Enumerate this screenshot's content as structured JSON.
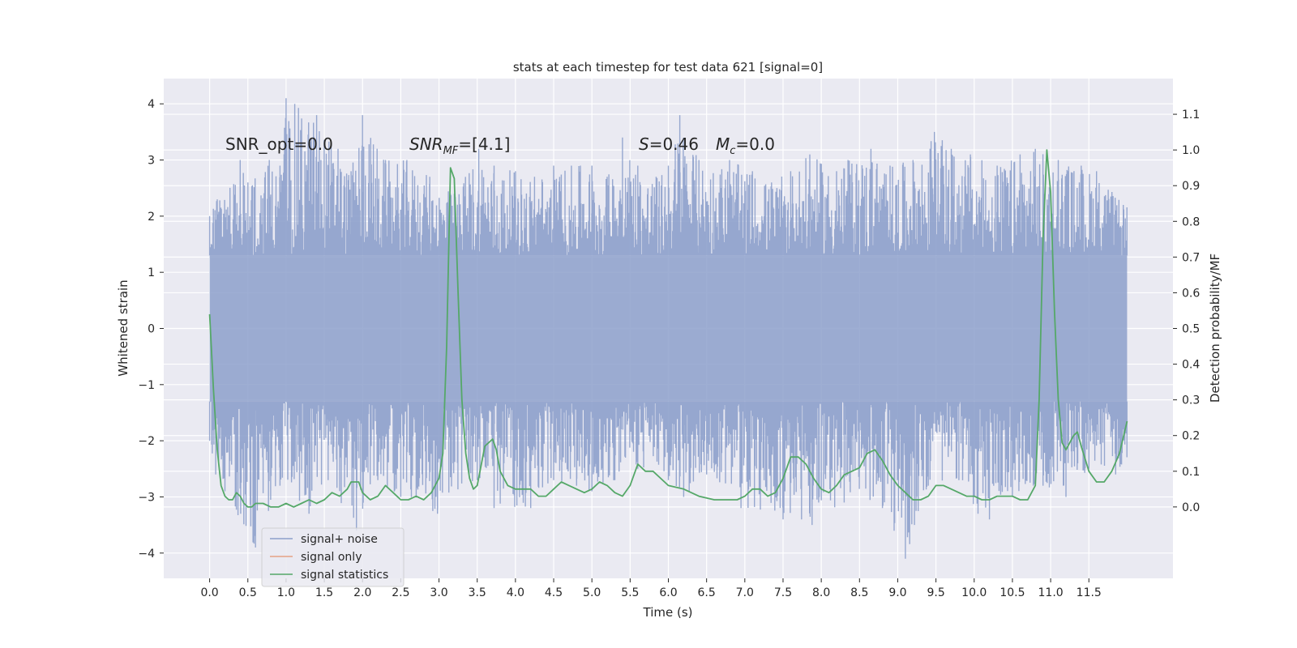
{
  "chart_data": {
    "type": "line",
    "title": "stats at each timestep for test data 621 [signal=0]",
    "xlabel": "Time (s)",
    "ylabel": "Whitened strain",
    "ylabel_right": "Detection probability/MF",
    "xlim": [
      -0.6,
      12.6
    ],
    "ylim": [
      -4.45,
      4.45
    ],
    "ylim_right": [
      -0.2,
      1.2
    ],
    "x_ticks": [
      "0.0",
      "0.5",
      "1.0",
      "1.5",
      "2.0",
      "2.5",
      "3.0",
      "3.5",
      "4.0",
      "4.5",
      "5.0",
      "5.5",
      "6.0",
      "6.5",
      "7.0",
      "7.5",
      "8.0",
      "8.5",
      "9.0",
      "9.5",
      "10.0",
      "10.5",
      "11.0",
      "11.5"
    ],
    "y_ticks": [
      "4",
      "3",
      "2",
      "1",
      "0",
      "−1",
      "−2",
      "−3",
      "−4"
    ],
    "y_ticks_right": [
      "1.1",
      "1.0",
      "0.9",
      "0.8",
      "0.7",
      "0.6",
      "0.5",
      "0.4",
      "0.3",
      "0.2",
      "0.1",
      "0.0"
    ],
    "grid": true,
    "legend_position": "lower-left",
    "annotations": {
      "snr_opt": "SNR_opt=0.0",
      "snr_mf_main": "SNR",
      "snr_mf_sub": "MF",
      "snr_mf_value": "=[4.1]",
      "s_symbol": "S",
      "s_value": "=0.46",
      "mc_symbol": "M",
      "mc_sub": "c",
      "mc_value": "=0.0"
    },
    "series": [
      {
        "name": "signal+ noise",
        "color": "#8da0cb",
        "kind": "noise-band",
        "x_range": [
          0.0,
          12.0
        ],
        "band": [
          -1.3,
          1.3
        ],
        "spike_peaks_upper": [
          [
            0.0,
            2.0
          ],
          [
            0.1,
            2.3
          ],
          [
            0.4,
            3.0
          ],
          [
            0.5,
            2.6
          ],
          [
            0.78,
            3.0
          ],
          [
            0.92,
            2.9
          ],
          [
            1.0,
            4.1
          ],
          [
            1.4,
            3.8
          ],
          [
            1.68,
            3.2
          ],
          [
            1.85,
            2.8
          ],
          [
            2.0,
            3.8
          ],
          [
            2.3,
            3.0
          ],
          [
            2.58,
            3.0
          ],
          [
            2.88,
            2.7
          ],
          [
            3.2,
            2.4
          ],
          [
            3.52,
            3.2
          ],
          [
            3.72,
            2.9
          ],
          [
            4.0,
            2.8
          ],
          [
            4.25,
            2.7
          ],
          [
            4.5,
            2.9
          ],
          [
            4.85,
            2.9
          ],
          [
            5.0,
            2.9
          ],
          [
            5.2,
            2.7
          ],
          [
            5.4,
            3.4
          ],
          [
            5.6,
            2.9
          ],
          [
            5.84,
            2.7
          ],
          [
            6.0,
            2.9
          ],
          [
            6.15,
            3.8
          ],
          [
            6.4,
            3.0
          ],
          [
            6.8,
            3.0
          ],
          [
            7.1,
            2.8
          ],
          [
            7.35,
            2.6
          ],
          [
            7.6,
            2.8
          ],
          [
            7.85,
            3.1
          ],
          [
            8.2,
            2.8
          ],
          [
            8.35,
            3.0
          ],
          [
            8.65,
            3.2
          ],
          [
            8.9,
            2.9
          ],
          [
            9.2,
            3.0
          ],
          [
            9.48,
            3.5
          ],
          [
            9.7,
            3.2
          ],
          [
            9.95,
            3.1
          ],
          [
            10.3,
            2.9
          ],
          [
            10.6,
            3.1
          ],
          [
            10.8,
            3.2
          ],
          [
            11.1,
            3.0
          ],
          [
            11.4,
            2.9
          ],
          [
            11.6,
            2.8
          ],
          [
            11.95,
            2.2
          ]
        ],
        "spike_peaks_lower": [
          [
            0.0,
            -2.0
          ],
          [
            0.08,
            -2.6
          ],
          [
            0.2,
            -2.9
          ],
          [
            0.6,
            -3.9
          ],
          [
            0.92,
            -2.8
          ],
          [
            1.3,
            -3.3
          ],
          [
            1.55,
            -2.7
          ],
          [
            1.92,
            -3.6
          ],
          [
            2.2,
            -2.7
          ],
          [
            2.5,
            -3.0
          ],
          [
            2.98,
            -3.3
          ],
          [
            3.5,
            -2.7
          ],
          [
            3.72,
            -3.2
          ],
          [
            4.2,
            -3.2
          ],
          [
            4.5,
            -2.7
          ],
          [
            4.8,
            -2.8
          ],
          [
            5.0,
            -2.9
          ],
          [
            5.3,
            -2.7
          ],
          [
            5.6,
            -2.5
          ],
          [
            6.0,
            -2.7
          ],
          [
            6.2,
            -3.0
          ],
          [
            6.5,
            -2.6
          ],
          [
            6.95,
            -3.2
          ],
          [
            7.5,
            -3.4
          ],
          [
            7.88,
            -3.5
          ],
          [
            8.3,
            -3.1
          ],
          [
            8.8,
            -3.2
          ],
          [
            9.1,
            -4.1
          ],
          [
            9.4,
            -2.8
          ],
          [
            9.8,
            -2.7
          ],
          [
            10.05,
            -3.3
          ],
          [
            10.2,
            -3.4
          ],
          [
            10.5,
            -3.0
          ],
          [
            10.9,
            -2.8
          ],
          [
            11.2,
            -3.0
          ],
          [
            11.5,
            -2.5
          ],
          [
            11.85,
            -2.6
          ]
        ]
      },
      {
        "name": "signal only",
        "color": "#e5a185",
        "kind": "line",
        "points": []
      },
      {
        "name": "signal statistics",
        "color": "#55a868",
        "kind": "line",
        "axis": "right",
        "points": [
          [
            0.0,
            0.54
          ],
          [
            0.05,
            0.33
          ],
          [
            0.1,
            0.16
          ],
          [
            0.15,
            0.06
          ],
          [
            0.2,
            0.03
          ],
          [
            0.25,
            0.02
          ],
          [
            0.3,
            0.02
          ],
          [
            0.35,
            0.04
          ],
          [
            0.4,
            0.03
          ],
          [
            0.45,
            0.01
          ],
          [
            0.5,
            0.0
          ],
          [
            0.55,
            0.0
          ],
          [
            0.6,
            0.01
          ],
          [
            0.7,
            0.01
          ],
          [
            0.8,
            0.0
          ],
          [
            0.9,
            0.0
          ],
          [
            1.0,
            0.01
          ],
          [
            1.1,
            0.0
          ],
          [
            1.2,
            0.01
          ],
          [
            1.3,
            0.02
          ],
          [
            1.4,
            0.01
          ],
          [
            1.5,
            0.02
          ],
          [
            1.6,
            0.04
          ],
          [
            1.7,
            0.03
          ],
          [
            1.8,
            0.05
          ],
          [
            1.85,
            0.07
          ],
          [
            1.95,
            0.07
          ],
          [
            2.0,
            0.04
          ],
          [
            2.1,
            0.02
          ],
          [
            2.2,
            0.03
          ],
          [
            2.3,
            0.06
          ],
          [
            2.4,
            0.04
          ],
          [
            2.5,
            0.02
          ],
          [
            2.6,
            0.02
          ],
          [
            2.7,
            0.03
          ],
          [
            2.8,
            0.02
          ],
          [
            2.9,
            0.04
          ],
          [
            3.0,
            0.08
          ],
          [
            3.05,
            0.15
          ],
          [
            3.1,
            0.45
          ],
          [
            3.15,
            0.95
          ],
          [
            3.2,
            0.92
          ],
          [
            3.25,
            0.6
          ],
          [
            3.3,
            0.3
          ],
          [
            3.35,
            0.15
          ],
          [
            3.4,
            0.08
          ],
          [
            3.45,
            0.05
          ],
          [
            3.5,
            0.06
          ],
          [
            3.6,
            0.17
          ],
          [
            3.7,
            0.19
          ],
          [
            3.75,
            0.16
          ],
          [
            3.8,
            0.1
          ],
          [
            3.9,
            0.06
          ],
          [
            4.0,
            0.05
          ],
          [
            4.2,
            0.05
          ],
          [
            4.3,
            0.03
          ],
          [
            4.4,
            0.03
          ],
          [
            4.5,
            0.05
          ],
          [
            4.6,
            0.07
          ],
          [
            4.7,
            0.06
          ],
          [
            4.8,
            0.05
          ],
          [
            4.9,
            0.04
          ],
          [
            5.0,
            0.05
          ],
          [
            5.1,
            0.07
          ],
          [
            5.2,
            0.06
          ],
          [
            5.3,
            0.04
          ],
          [
            5.4,
            0.03
          ],
          [
            5.5,
            0.06
          ],
          [
            5.6,
            0.12
          ],
          [
            5.7,
            0.1
          ],
          [
            5.8,
            0.1
          ],
          [
            5.9,
            0.08
          ],
          [
            6.0,
            0.06
          ],
          [
            6.2,
            0.05
          ],
          [
            6.4,
            0.03
          ],
          [
            6.6,
            0.02
          ],
          [
            6.8,
            0.02
          ],
          [
            6.9,
            0.02
          ],
          [
            7.0,
            0.03
          ],
          [
            7.1,
            0.05
          ],
          [
            7.2,
            0.05
          ],
          [
            7.3,
            0.03
          ],
          [
            7.4,
            0.04
          ],
          [
            7.5,
            0.08
          ],
          [
            7.6,
            0.14
          ],
          [
            7.7,
            0.14
          ],
          [
            7.8,
            0.12
          ],
          [
            7.9,
            0.08
          ],
          [
            8.0,
            0.05
          ],
          [
            8.1,
            0.04
          ],
          [
            8.2,
            0.06
          ],
          [
            8.3,
            0.09
          ],
          [
            8.4,
            0.1
          ],
          [
            8.5,
            0.11
          ],
          [
            8.6,
            0.15
          ],
          [
            8.7,
            0.16
          ],
          [
            8.8,
            0.13
          ],
          [
            8.9,
            0.09
          ],
          [
            9.0,
            0.06
          ],
          [
            9.1,
            0.04
          ],
          [
            9.2,
            0.02
          ],
          [
            9.3,
            0.02
          ],
          [
            9.4,
            0.03
          ],
          [
            9.5,
            0.06
          ],
          [
            9.6,
            0.06
          ],
          [
            9.7,
            0.05
          ],
          [
            9.8,
            0.04
          ],
          [
            9.9,
            0.03
          ],
          [
            10.0,
            0.03
          ],
          [
            10.1,
            0.02
          ],
          [
            10.2,
            0.02
          ],
          [
            10.3,
            0.03
          ],
          [
            10.4,
            0.03
          ],
          [
            10.5,
            0.03
          ],
          [
            10.6,
            0.02
          ],
          [
            10.7,
            0.02
          ],
          [
            10.8,
            0.06
          ],
          [
            10.85,
            0.3
          ],
          [
            10.9,
            0.75
          ],
          [
            10.95,
            1.0
          ],
          [
            11.0,
            0.88
          ],
          [
            11.05,
            0.55
          ],
          [
            11.1,
            0.3
          ],
          [
            11.15,
            0.18
          ],
          [
            11.2,
            0.16
          ],
          [
            11.3,
            0.2
          ],
          [
            11.35,
            0.21
          ],
          [
            11.4,
            0.17
          ],
          [
            11.5,
            0.1
          ],
          [
            11.6,
            0.07
          ],
          [
            11.7,
            0.07
          ],
          [
            11.8,
            0.1
          ],
          [
            11.9,
            0.15
          ],
          [
            12.0,
            0.24
          ]
        ]
      }
    ]
  }
}
